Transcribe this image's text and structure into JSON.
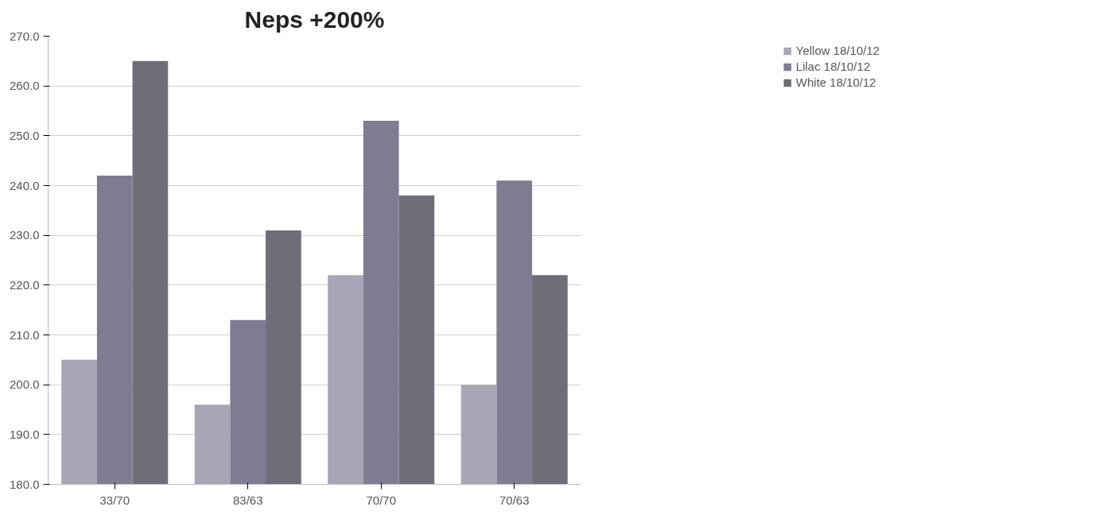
{
  "chart_data": {
    "type": "bar",
    "title": "Neps +200%",
    "categories": [
      "33/70",
      "83/63",
      "70/70",
      "70/63"
    ],
    "series": [
      {
        "name": "Yellow 18/10/12",
        "color": "#a8a6b6",
        "values": [
          205,
          196,
          222,
          200
        ]
      },
      {
        "name": "Lilac 18/10/12",
        "color": "#7e7c90",
        "values": [
          242,
          213,
          253,
          241
        ]
      },
      {
        "name": "White 18/10/12",
        "color": "#6f6d78",
        "values": [
          265,
          231,
          238,
          222
        ]
      }
    ],
    "ylim": [
      180,
      270
    ],
    "yticks": [
      {
        "value": 180,
        "label": "180.0"
      },
      {
        "value": 190,
        "label": "190.0"
      },
      {
        "value": 200,
        "label": "200.0"
      },
      {
        "value": 210,
        "label": "210.0"
      },
      {
        "value": 220,
        "label": "220.0"
      },
      {
        "value": 230,
        "label": "230.0"
      },
      {
        "value": 240,
        "label": "240.0"
      },
      {
        "value": 250,
        "label": "250.0"
      },
      {
        "value": 260,
        "label": "260.0"
      },
      {
        "value": 270,
        "label": "270.0"
      }
    ],
    "grid": "y",
    "legend": "top right"
  }
}
